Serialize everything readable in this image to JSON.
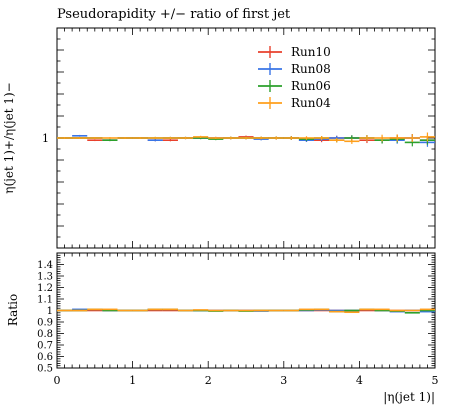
{
  "chart_data": {
    "type": "line",
    "title": "Pseudorapidity +/− ratio of first jet",
    "xlabel": "|η(jet 1)|",
    "ylabel_main": "η(jet 1)+/η(jet 1)−",
    "ylabel_ratio": "Ratio",
    "xlim": [
      0,
      5
    ],
    "x_ticks": [
      "0",
      "1",
      "2",
      "3",
      "4",
      "5"
    ],
    "main_ylim": [
      0.5,
      1.5
    ],
    "main_y_ticks": [
      "1"
    ],
    "ratio_ylim": [
      0.5,
      1.5
    ],
    "ratio_y_ticks": [
      "0.5",
      "0.6",
      "0.7",
      "0.8",
      "0.9",
      "1",
      "1.1",
      "1.2",
      "1.3",
      "1.4"
    ],
    "legend": [
      "Run10",
      "Run08",
      "Run06",
      "Run04"
    ],
    "legend_position": "top-right",
    "grid": false,
    "bin_edges": [
      0,
      0.2,
      0.4,
      0.6,
      0.8,
      1.0,
      1.2,
      1.4,
      1.6,
      1.8,
      2.0,
      2.2,
      2.4,
      2.6,
      2.8,
      3.0,
      3.2,
      3.4,
      3.6,
      3.8,
      4.0,
      4.2,
      4.4,
      4.6,
      4.8,
      5.0
    ],
    "series": [
      {
        "name": "Run10",
        "color": "#e8412d",
        "values": [
          1.0,
          1.0,
          0.99,
          0.99,
          1.0,
          1.0,
          0.99,
          0.99,
          1.0,
          1.0,
          1.0,
          1.0,
          1.005,
          1.0,
          1.0,
          1.0,
          0.99,
          0.99,
          1.0,
          1.0,
          0.99,
          0.99,
          1.0,
          1.0,
          0.99
        ],
        "errors": [
          0.004,
          0.004,
          0.004,
          0.004,
          0.004,
          0.004,
          0.005,
          0.005,
          0.005,
          0.005,
          0.005,
          0.006,
          0.006,
          0.006,
          0.007,
          0.008,
          0.008,
          0.009,
          0.01,
          0.012,
          0.013,
          0.015,
          0.016,
          0.018,
          0.02
        ]
      },
      {
        "name": "Run08",
        "color": "#3a75e6",
        "values": [
          1.0,
          1.01,
          1.0,
          0.99,
          1.0,
          1.0,
          0.99,
          1.0,
          1.0,
          1.0,
          1.0,
          1.0,
          1.0,
          0.995,
          1.0,
          1.0,
          0.99,
          0.995,
          1.0,
          1.0,
          1.0,
          0.99,
          0.99,
          1.0,
          0.98
        ],
        "errors": [
          0.004,
          0.004,
          0.004,
          0.004,
          0.004,
          0.004,
          0.005,
          0.005,
          0.005,
          0.005,
          0.005,
          0.006,
          0.006,
          0.006,
          0.007,
          0.008,
          0.008,
          0.009,
          0.01,
          0.012,
          0.013,
          0.015,
          0.016,
          0.018,
          0.02
        ]
      },
      {
        "name": "Run06",
        "color": "#2ca02c",
        "values": [
          1.0,
          1.0,
          1.0,
          0.99,
          1.0,
          1.0,
          1.0,
          1.0,
          1.0,
          1.0,
          0.995,
          1.0,
          1.0,
          1.0,
          1.0,
          1.0,
          0.995,
          1.0,
          0.99,
          1.0,
          1.0,
          0.99,
          0.995,
          0.98,
          0.99
        ],
        "errors": [
          0.004,
          0.004,
          0.004,
          0.004,
          0.004,
          0.004,
          0.005,
          0.005,
          0.005,
          0.005,
          0.005,
          0.006,
          0.006,
          0.006,
          0.007,
          0.008,
          0.008,
          0.009,
          0.01,
          0.012,
          0.013,
          0.015,
          0.016,
          0.018,
          0.02
        ]
      },
      {
        "name": "Run04",
        "color": "#ff9f1c",
        "values": [
          1.0,
          1.0,
          1.0,
          1.0,
          1.0,
          1.0,
          1.0,
          1.0,
          1.0,
          1.005,
          1.0,
          1.0,
          1.0,
          1.0,
          1.0,
          1.0,
          1.0,
          1.0,
          0.99,
          0.985,
          1.0,
          1.0,
          1.0,
          1.0,
          1.005
        ],
        "errors": [
          0.004,
          0.004,
          0.004,
          0.004,
          0.004,
          0.004,
          0.005,
          0.005,
          0.005,
          0.005,
          0.005,
          0.006,
          0.006,
          0.006,
          0.007,
          0.008,
          0.008,
          0.009,
          0.01,
          0.012,
          0.013,
          0.015,
          0.016,
          0.018,
          0.02
        ]
      }
    ],
    "ratio_series": [
      {
        "name": "Run10",
        "color": "#e8412d",
        "values": [
          1.0,
          1.0,
          1.0,
          1.0,
          1.0,
          1.0,
          1.0,
          1.0,
          1.0,
          1.0,
          1.0,
          1.0,
          1.0,
          1.0,
          1.0,
          1.0,
          1.0,
          1.0,
          1.0,
          1.0,
          1.0,
          1.0,
          1.0,
          1.0,
          1.0
        ]
      },
      {
        "name": "Run08",
        "color": "#3a75e6",
        "values": [
          1.0,
          1.01,
          1.01,
          1.0,
          1.0,
          1.0,
          1.01,
          1.01,
          1.0,
          1.0,
          1.0,
          1.0,
          1.0,
          0.995,
          1.0,
          1.0,
          1.0,
          1.005,
          1.0,
          1.0,
          1.01,
          1.0,
          0.99,
          1.0,
          0.99
        ]
      },
      {
        "name": "Run06",
        "color": "#2ca02c",
        "values": [
          1.0,
          1.0,
          1.01,
          1.0,
          1.0,
          1.0,
          1.01,
          1.01,
          1.0,
          1.0,
          0.995,
          1.0,
          0.995,
          1.0,
          1.0,
          1.0,
          1.005,
          1.01,
          0.99,
          1.0,
          1.01,
          1.0,
          0.995,
          0.98,
          1.0
        ]
      },
      {
        "name": "Run04",
        "color": "#ff9f1c",
        "values": [
          1.0,
          1.0,
          1.01,
          1.01,
          1.0,
          1.0,
          1.01,
          1.01,
          1.0,
          1.005,
          1.0,
          1.0,
          1.0,
          1.0,
          1.0,
          1.0,
          1.01,
          1.01,
          0.99,
          0.985,
          1.01,
          1.01,
          1.0,
          1.0,
          1.01
        ]
      }
    ]
  }
}
